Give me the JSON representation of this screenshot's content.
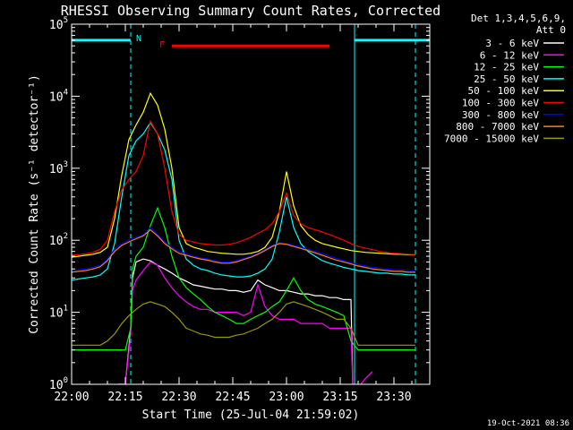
{
  "chart_data": {
    "type": "line",
    "title": "RHESSI Observing Summary Count Rates, Corrected",
    "xlabel": "Start Time (25-Jul-04 21:59:02)",
    "ylabel": "Corrected Count Rate (s⁻¹ detector⁻¹)",
    "y_scale": "log",
    "ylim": [
      1,
      100000
    ],
    "xlim_minutes": [
      0,
      100
    ],
    "x_tick_labels": [
      "22:00",
      "22:15",
      "22:30",
      "22:45",
      "23:00",
      "23:15",
      "23:30"
    ],
    "x_tick_minutes": [
      0,
      15,
      30,
      45,
      60,
      75,
      90
    ],
    "y_tick_labels": [
      {
        "base": "10",
        "exp": "0",
        "value": 1
      },
      {
        "base": "10",
        "exp": "1",
        "value": 10
      },
      {
        "base": "10",
        "exp": "2",
        "value": 100
      },
      {
        "base": "10",
        "exp": "3",
        "value": 1000
      },
      {
        "base": "10",
        "exp": "4",
        "value": 10000
      },
      {
        "base": "10",
        "exp": "5",
        "value": 100000
      }
    ],
    "legend_header": [
      "Det 1,3,4,5,6,9,",
      "Att 0"
    ],
    "legend_position": "right",
    "footer_date": "19-Oct-2021 08:36",
    "annotations": {
      "night_label": "N",
      "flare_label": "F",
      "night_bars": [
        {
          "x_start": 0,
          "x_end": 16.5,
          "y": 60000
        },
        {
          "x_start": 79,
          "x_end": 100,
          "y": 60000
        }
      ],
      "flare_bar": {
        "x_start": 28,
        "x_end": 72,
        "y": 50000
      },
      "vlines": [
        {
          "x": 0,
          "style": "solid"
        },
        {
          "x": 16.5,
          "style": "dashed"
        },
        {
          "x": 79,
          "style": "solid"
        },
        {
          "x": 96,
          "style": "dashed"
        }
      ]
    },
    "series": [
      {
        "name": "3 - 6 keV",
        "color": "#ffffff",
        "x": [
          13,
          15,
          16.5,
          17,
          18,
          20,
          22,
          24,
          26,
          28,
          30,
          32,
          34,
          36,
          38,
          40,
          42,
          44,
          46,
          48,
          50,
          52,
          54,
          56,
          58,
          60,
          62,
          64,
          66,
          68,
          70,
          72,
          74,
          76,
          78,
          78.5
        ],
        "y": [
          1,
          1,
          6,
          30,
          50,
          55,
          52,
          45,
          40,
          35,
          30,
          27,
          24,
          23,
          22,
          21,
          21,
          20,
          20,
          19,
          20,
          28,
          24,
          22,
          20,
          20,
          19,
          18,
          18,
          17,
          17,
          16,
          16,
          15,
          15,
          1
        ]
      },
      {
        "name": "6 - 12 keV",
        "color": "#ff00ff",
        "x": [
          13,
          15,
          16.5,
          17,
          18,
          20,
          22,
          24,
          26,
          28,
          30,
          32,
          34,
          36,
          38,
          40,
          42,
          44,
          46,
          48,
          50,
          52,
          54,
          56,
          58,
          60,
          62,
          64,
          66,
          68,
          70,
          72,
          74,
          76,
          78,
          78.5,
          80,
          82,
          84
        ],
        "y": [
          1,
          1,
          5,
          20,
          28,
          38,
          50,
          45,
          30,
          22,
          17,
          14,
          12,
          11,
          11,
          10,
          10,
          10,
          10,
          9,
          10,
          24,
          12,
          9,
          8,
          8,
          8,
          7,
          7,
          7,
          7,
          6,
          6,
          6,
          6,
          1,
          0.9,
          1.2,
          1.5
        ]
      },
      {
        "name": "12 - 25 keV",
        "color": "#00ff00",
        "x": [
          0,
          15,
          16.5,
          17,
          18,
          20,
          22,
          24,
          26,
          28,
          30,
          32,
          34,
          36,
          38,
          40,
          42,
          44,
          46,
          48,
          50,
          52,
          54,
          56,
          58,
          60,
          62,
          64,
          66,
          68,
          70,
          72,
          74,
          76,
          78,
          80,
          82,
          84,
          86,
          88,
          90,
          92,
          94,
          96
        ],
        "y": [
          3,
          3,
          6,
          40,
          60,
          80,
          160,
          280,
          150,
          60,
          30,
          22,
          18,
          15,
          12,
          10,
          9,
          8,
          7,
          7,
          8,
          9,
          10,
          12,
          14,
          20,
          30,
          20,
          15,
          13,
          12,
          11,
          10,
          9,
          4,
          3,
          3,
          3,
          3,
          3,
          3,
          3,
          3,
          3
        ]
      },
      {
        "name": "25 - 50 keV",
        "color": "#00ffff",
        "x": [
          0,
          2,
          4,
          6,
          8,
          10,
          12,
          14,
          16,
          18,
          20,
          22,
          24,
          26,
          28,
          30,
          32,
          34,
          36,
          38,
          40,
          42,
          44,
          46,
          48,
          50,
          52,
          54,
          56,
          58,
          60,
          62,
          64,
          66,
          68,
          70,
          72,
          74,
          76,
          78,
          80,
          82,
          84,
          86,
          88,
          90,
          92,
          94,
          96
        ],
        "y": [
          28,
          29,
          30,
          31,
          33,
          40,
          90,
          400,
          1500,
          2400,
          3000,
          4300,
          3000,
          1800,
          700,
          100,
          55,
          45,
          40,
          38,
          35,
          33,
          32,
          31,
          31,
          32,
          35,
          40,
          55,
          130,
          400,
          150,
          90,
          70,
          60,
          52,
          48,
          45,
          42,
          40,
          38,
          37,
          36,
          35,
          35,
          34,
          34,
          33,
          33
        ]
      },
      {
        "name": "50 - 100 keV",
        "color": "#ffff00",
        "x": [
          0,
          2,
          4,
          6,
          8,
          10,
          12,
          14,
          16,
          18,
          20,
          22,
          24,
          26,
          28,
          30,
          32,
          34,
          36,
          38,
          40,
          42,
          44,
          46,
          48,
          50,
          52,
          54,
          56,
          58,
          60,
          62,
          64,
          66,
          68,
          70,
          72,
          74,
          76,
          78,
          80,
          82,
          84,
          86,
          88,
          90,
          92,
          94,
          96
        ],
        "y": [
          58,
          60,
          62,
          64,
          68,
          80,
          200,
          800,
          2500,
          4000,
          6000,
          11000,
          7500,
          3500,
          1000,
          150,
          90,
          80,
          75,
          70,
          68,
          66,
          65,
          64,
          64,
          66,
          70,
          80,
          110,
          250,
          900,
          300,
          160,
          120,
          100,
          90,
          85,
          80,
          76,
          72,
          70,
          68,
          67,
          66,
          65,
          64,
          64,
          63,
          63
        ]
      },
      {
        "name": "100 - 300 keV",
        "color": "#ff0000",
        "x": [
          0,
          2,
          4,
          6,
          8,
          10,
          12,
          14,
          16,
          18,
          20,
          22,
          24,
          26,
          28,
          30,
          32,
          34,
          36,
          38,
          40,
          42,
          44,
          46,
          48,
          50,
          52,
          54,
          56,
          58,
          60,
          62,
          64,
          66,
          68,
          70,
          72,
          74,
          76,
          78,
          80,
          82,
          84,
          86,
          88,
          90,
          92,
          94,
          96
        ],
        "y": [
          62,
          63,
          65,
          68,
          75,
          100,
          250,
          500,
          700,
          900,
          1500,
          4500,
          3000,
          1000,
          250,
          120,
          100,
          95,
          90,
          88,
          86,
          86,
          88,
          92,
          100,
          110,
          125,
          140,
          170,
          250,
          450,
          220,
          170,
          150,
          140,
          130,
          120,
          110,
          100,
          90,
          82,
          78,
          74,
          70,
          68,
          66,
          65,
          64,
          63
        ]
      },
      {
        "name": "300 - 800 keV",
        "color": "#0000ff",
        "x": [
          0,
          2,
          4,
          6,
          8,
          10,
          12,
          14,
          16,
          18,
          20,
          22,
          24,
          26,
          28,
          30,
          32,
          34,
          36,
          38,
          40,
          42,
          44,
          46,
          48,
          50,
          52,
          54,
          56,
          58,
          60,
          62,
          64,
          66,
          68,
          70,
          72,
          74,
          76,
          78,
          80,
          82,
          84,
          86,
          88,
          90,
          92,
          94,
          96
        ],
        "y": [
          38,
          39,
          40,
          42,
          45,
          55,
          75,
          90,
          100,
          110,
          120,
          150,
          120,
          95,
          80,
          70,
          65,
          60,
          57,
          55,
          52,
          50,
          50,
          52,
          56,
          60,
          66,
          75,
          85,
          92,
          90,
          85,
          80,
          75,
          70,
          65,
          60,
          56,
          52,
          49,
          46,
          44,
          42,
          41,
          40,
          39,
          39,
          38,
          38
        ]
      },
      {
        "name": "800 - 7000 keV",
        "color": "#ff8000",
        "x": [
          0,
          2,
          4,
          6,
          8,
          10,
          12,
          14,
          16,
          18,
          20,
          22,
          24,
          26,
          28,
          30,
          32,
          34,
          36,
          38,
          40,
          42,
          44,
          46,
          48,
          50,
          52,
          54,
          56,
          58,
          60,
          62,
          64,
          66,
          68,
          70,
          72,
          74,
          76,
          78,
          80,
          82,
          84,
          86,
          88,
          90,
          92,
          94,
          96
        ],
        "y": [
          36,
          37,
          38,
          40,
          43,
          52,
          70,
          85,
          95,
          105,
          115,
          140,
          115,
          90,
          76,
          66,
          62,
          58,
          55,
          53,
          50,
          48,
          48,
          50,
          54,
          58,
          64,
          72,
          82,
          90,
          88,
          82,
          77,
          72,
          67,
          62,
          57,
          53,
          50,
          47,
          44,
          42,
          40,
          39,
          38,
          37,
          37,
          36,
          36
        ]
      },
      {
        "name": "7000 - 15000 keV",
        "color": "#999900",
        "x": [
          0,
          8,
          10,
          12,
          14,
          16,
          18,
          20,
          22,
          24,
          26,
          28,
          30,
          32,
          34,
          36,
          38,
          40,
          42,
          44,
          46,
          48,
          50,
          52,
          54,
          56,
          58,
          60,
          62,
          64,
          66,
          68,
          70,
          72,
          74,
          76,
          78,
          80,
          84,
          88,
          92,
          96
        ],
        "y": [
          3.5,
          3.5,
          4,
          5,
          7,
          9,
          11,
          13,
          14,
          13,
          12,
          10,
          8,
          6,
          5.5,
          5,
          4.8,
          4.5,
          4.5,
          4.5,
          4.8,
          5,
          5.5,
          6,
          7,
          8,
          10,
          13,
          14,
          13,
          12,
          11,
          10,
          9,
          8,
          8,
          6,
          3.5,
          3.5,
          3.5,
          3.5,
          3.5
        ]
      }
    ]
  }
}
